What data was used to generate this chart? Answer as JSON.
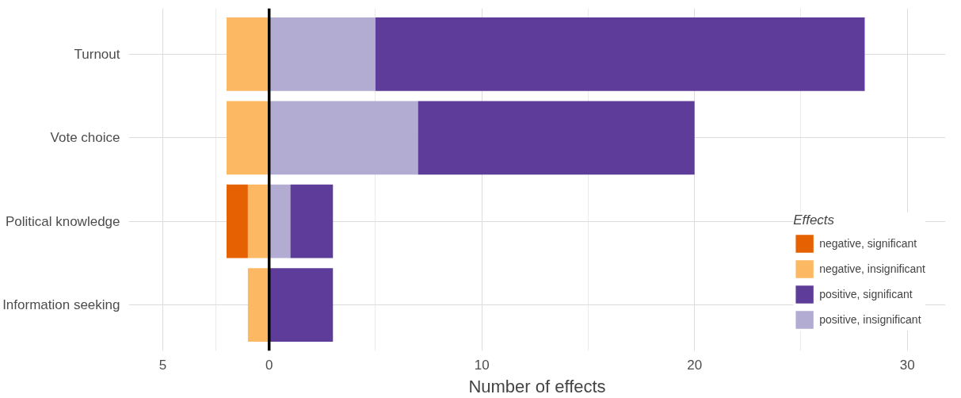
{
  "chart_data": {
    "type": "bar",
    "orientation": "horizontal",
    "stacked": true,
    "categories": [
      "Turnout",
      "Vote choice",
      "Political knowledge",
      "Information seeking"
    ],
    "series": [
      {
        "name": "negative, insignificant",
        "color": "#fdb863",
        "values": [
          -2,
          -2,
          -1,
          -1
        ]
      },
      {
        "name": "negative, significant",
        "color": "#e66101",
        "values": [
          0,
          0,
          -1,
          0
        ]
      },
      {
        "name": "positive, insignificant",
        "color": "#b2abd2",
        "values": [
          5,
          7,
          1,
          0
        ]
      },
      {
        "name": "positive, significant",
        "color": "#5e3c99",
        "values": [
          23,
          13,
          2,
          3
        ]
      }
    ],
    "xlabel": "Number of effects",
    "legend_title": "Effects",
    "legend": "bottom right",
    "xlim": [
      -6.6,
      31.8
    ],
    "xticks": [
      {
        "value": -5,
        "label": "5"
      },
      0,
      10,
      20,
      30
    ],
    "grid": true,
    "ref_lines": [
      {
        "axis": "x",
        "value": 0,
        "label": null,
        "color": "#000000"
      }
    ]
  }
}
